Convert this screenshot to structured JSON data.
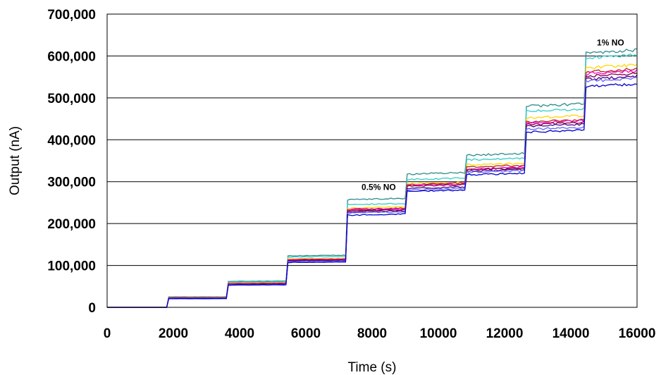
{
  "chart_data": {
    "type": "line",
    "title": "",
    "xlabel": "Time (s)",
    "ylabel": "Output (nA)",
    "xlim": [
      0,
      16000
    ],
    "ylim": [
      0,
      700000
    ],
    "grid": "horizontal",
    "legend": "none",
    "x_ticks": [
      "0",
      "2000",
      "4000",
      "6000",
      "8000",
      "10000",
      "12000",
      "14000",
      "16000"
    ],
    "y_ticks": [
      "0",
      "100,000",
      "200,000",
      "300,000",
      "400,000",
      "500,000",
      "600,000",
      "700,000"
    ],
    "step_times": [
      0,
      1800,
      3600,
      5400,
      7200,
      9000,
      10800,
      12600,
      14400,
      16000
    ],
    "annotations": [
      {
        "text": "0.5% NO",
        "x": 8200,
        "y": 280000
      },
      {
        "text": "1% NO",
        "x": 15200,
        "y": 625000
      }
    ],
    "series": [
      {
        "color": "#2e8b8b",
        "levels": [
          0,
          25000,
          62000,
          123000,
          257000,
          318000,
          363000,
          480000,
          607000
        ]
      },
      {
        "color": "#33cccc",
        "levels": [
          0,
          24000,
          60000,
          120000,
          245000,
          305000,
          352000,
          468000,
          595000
        ]
      },
      {
        "color": "#ffd700",
        "levels": [
          0,
          23500,
          58000,
          116000,
          237000,
          295000,
          340000,
          452000,
          572000
        ]
      },
      {
        "color": "#b22222",
        "levels": [
          0,
          23000,
          57000,
          114000,
          234000,
          293000,
          335000,
          442000,
          562000
        ]
      },
      {
        "color": "#ff00cc",
        "levels": [
          0,
          22500,
          56000,
          113000,
          232000,
          291000,
          330000,
          440000,
          558000
        ]
      },
      {
        "color": "#800040",
        "levels": [
          0,
          22000,
          55000,
          112000,
          230000,
          289000,
          328000,
          436000,
          552000
        ]
      },
      {
        "color": "#4b0082",
        "levels": [
          0,
          21500,
          54000,
          111000,
          228000,
          284000,
          325000,
          432000,
          545000
        ]
      },
      {
        "color": "#6666ff",
        "levels": [
          0,
          21000,
          53500,
          109000,
          225000,
          280000,
          322000,
          425000,
          540000
        ]
      },
      {
        "color": "#0000cc",
        "levels": [
          0,
          20500,
          53000,
          107000,
          220000,
          277000,
          316000,
          418000,
          527000
        ]
      }
    ]
  }
}
